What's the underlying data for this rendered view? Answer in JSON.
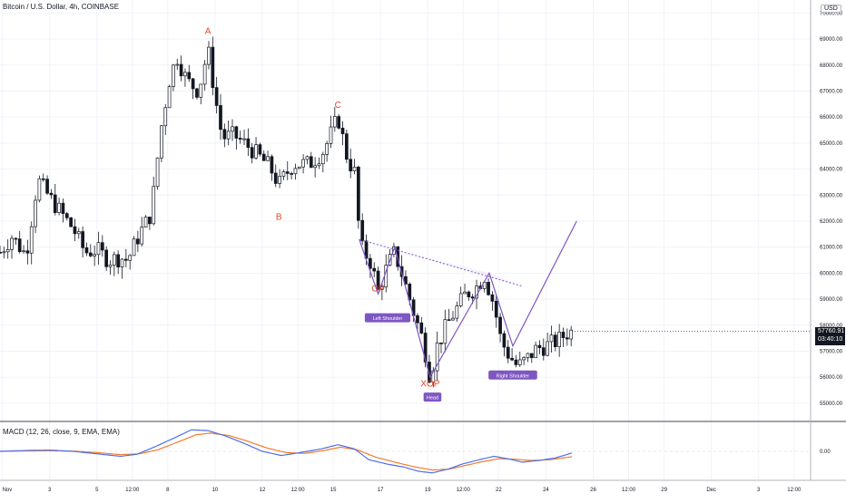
{
  "header": {
    "title": "Bitcoin / U.S. Dollar, 4h, COINBASE",
    "currency": "USD"
  },
  "price_badge": {
    "price": "57760.91",
    "countdown": "03:40:10"
  },
  "macd": {
    "label": "MACD (12, 26, close, 9, EMA, EMA)",
    "zero_label": "0.00"
  },
  "annotations": {
    "waves": [
      {
        "label": "A",
        "time": 9.7,
        "price": 69200
      },
      {
        "label": "B",
        "time": 12.7,
        "price": 62050
      },
      {
        "label": "C",
        "time": 15.2,
        "price": 66350
      },
      {
        "label": "OP",
        "time": 16.9,
        "price": 59300
      },
      {
        "label": "XOP",
        "time": 19.1,
        "price": 55650
      }
    ],
    "pattern_labels": [
      {
        "label": "Left Shoulder",
        "time": 17.3,
        "price": 58250
      },
      {
        "label": "Head",
        "time": 19.2,
        "price": 55200
      },
      {
        "label": "Right Shoulder",
        "time": 22.6,
        "price": 56050
      }
    ]
  },
  "colors": {
    "up": "#131722",
    "down": "#131722",
    "macd_line": "#4d6fe8",
    "signal_line": "#f57c2a",
    "pattern": "#7e57c2",
    "label_red": "#e4462b",
    "grid": "#f0f3fa",
    "axis_text": "#131722"
  },
  "chart_data": {
    "type": "candlestick",
    "title": "Bitcoin / U.S. Dollar, 4h, COINBASE",
    "x_axis": {
      "ticks": [
        {
          "label": "Nov",
          "t": 1.0
        },
        {
          "label": "3",
          "t": 3.0
        },
        {
          "label": "5",
          "t": 5.0
        },
        {
          "label": "12:00",
          "t": 6.5
        },
        {
          "label": "8",
          "t": 8.0
        },
        {
          "label": "10",
          "t": 10.0
        },
        {
          "label": "12",
          "t": 12.0
        },
        {
          "label": "12:00",
          "t": 13.5
        },
        {
          "label": "15",
          "t": 15.0
        },
        {
          "label": "17",
          "t": 17.0
        },
        {
          "label": "19",
          "t": 19.0
        },
        {
          "label": "12:00",
          "t": 20.5
        },
        {
          "label": "22",
          "t": 22.0
        },
        {
          "label": "24",
          "t": 24.0
        },
        {
          "label": "26",
          "t": 26.0
        },
        {
          "label": "12:00",
          "t": 27.5
        },
        {
          "label": "29",
          "t": 29.0
        },
        {
          "label": "Dec",
          "t": 31.0
        },
        {
          "label": "3",
          "t": 33.0
        },
        {
          "label": "12:00",
          "t": 34.5
        }
      ]
    },
    "y_axis": {
      "range": [
        54300,
        70500
      ],
      "ticks": [
        55000,
        56000,
        57000,
        58000,
        59000,
        60000,
        61000,
        62000,
        63000,
        64000,
        65000,
        66000,
        67000,
        68000,
        69000,
        70000
      ],
      "tick_labels": [
        "55000.00",
        "56000.00",
        "57000.00",
        "58000.00",
        "59000.00",
        "60000.00",
        "61000.00",
        "62000.00",
        "63000.00",
        "64000.00",
        "65000.00",
        "66000.00",
        "67000.00",
        "68000.00",
        "69000.00",
        "70000.00"
      ]
    },
    "x_range": [
      0.9,
      35.2
    ],
    "close_anchors": [
      [
        0.9,
        60800
      ],
      [
        1.4,
        61400
      ],
      [
        2.0,
        60700
      ],
      [
        2.5,
        63600
      ],
      [
        3.0,
        62900
      ],
      [
        3.5,
        62300
      ],
      [
        4.0,
        61700
      ],
      [
        4.5,
        60800
      ],
      [
        5.0,
        60900
      ],
      [
        5.5,
        60500
      ],
      [
        6.0,
        60600
      ],
      [
        6.3,
        60500
      ],
      [
        6.8,
        61500
      ],
      [
        7.3,
        62300
      ],
      [
        7.7,
        65500
      ],
      [
        8.1,
        67600
      ],
      [
        8.4,
        68300
      ],
      [
        8.8,
        67400
      ],
      [
        9.3,
        67000
      ],
      [
        9.7,
        68600
      ],
      [
        10.0,
        66800
      ],
      [
        10.3,
        65200
      ],
      [
        10.8,
        65300
      ],
      [
        11.5,
        64800
      ],
      [
        12.3,
        64100
      ],
      [
        12.7,
        63400
      ],
      [
        13.3,
        64200
      ],
      [
        14.0,
        64200
      ],
      [
        14.6,
        64700
      ],
      [
        15.2,
        66000
      ],
      [
        15.6,
        64400
      ],
      [
        16.0,
        63700
      ],
      [
        16.1,
        61100
      ],
      [
        16.6,
        60400
      ],
      [
        16.9,
        59300
      ],
      [
        17.3,
        60300
      ],
      [
        17.6,
        60800
      ],
      [
        18.0,
        59700
      ],
      [
        18.4,
        58500
      ],
      [
        18.8,
        57400
      ],
      [
        19.1,
        56000
      ],
      [
        19.4,
        57200
      ],
      [
        19.8,
        58000
      ],
      [
        20.2,
        58600
      ],
      [
        20.6,
        59200
      ],
      [
        21.0,
        59400
      ],
      [
        21.4,
        59900
      ],
      [
        21.8,
        58800
      ],
      [
        22.1,
        57400
      ],
      [
        22.4,
        56900
      ],
      [
        22.8,
        56400
      ],
      [
        23.2,
        56700
      ],
      [
        23.6,
        57100
      ],
      [
        24.0,
        57200
      ],
      [
        24.5,
        57400
      ],
      [
        24.9,
        57700
      ],
      [
        25.1,
        57760
      ]
    ],
    "macd_anchors": [
      [
        0.9,
        0
      ],
      [
        2.0,
        20
      ],
      [
        3.0,
        30
      ],
      [
        4.0,
        0
      ],
      [
        5.0,
        -60
      ],
      [
        6.0,
        -120
      ],
      [
        6.7,
        -70
      ],
      [
        7.5,
        120
      ],
      [
        8.3,
        330
      ],
      [
        9.0,
        520
      ],
      [
        9.7,
        500
      ],
      [
        10.4,
        380
      ],
      [
        11.2,
        200
      ],
      [
        12.0,
        0
      ],
      [
        12.8,
        -100
      ],
      [
        13.5,
        -40
      ],
      [
        14.5,
        60
      ],
      [
        15.2,
        160
      ],
      [
        15.9,
        60
      ],
      [
        16.5,
        -200
      ],
      [
        17.3,
        -310
      ],
      [
        18.0,
        -380
      ],
      [
        18.6,
        -480
      ],
      [
        19.2,
        -520
      ],
      [
        19.9,
        -420
      ],
      [
        20.5,
        -300
      ],
      [
        21.2,
        -200
      ],
      [
        21.8,
        -120
      ],
      [
        22.4,
        -180
      ],
      [
        23.0,
        -260
      ],
      [
        23.7,
        -220
      ],
      [
        24.4,
        -160
      ],
      [
        25.1,
        -40
      ]
    ],
    "signal_anchors": [
      [
        0.9,
        0
      ],
      [
        2.0,
        10
      ],
      [
        3.0,
        15
      ],
      [
        4.0,
        5
      ],
      [
        5.0,
        -30
      ],
      [
        6.0,
        -80
      ],
      [
        6.8,
        -60
      ],
      [
        7.6,
        40
      ],
      [
        8.4,
        220
      ],
      [
        9.2,
        400
      ],
      [
        9.8,
        440
      ],
      [
        10.6,
        380
      ],
      [
        11.4,
        240
      ],
      [
        12.2,
        80
      ],
      [
        13.0,
        -30
      ],
      [
        13.8,
        -50
      ],
      [
        14.6,
        20
      ],
      [
        15.3,
        100
      ],
      [
        16.0,
        40
      ],
      [
        16.8,
        -140
      ],
      [
        17.6,
        -260
      ],
      [
        18.4,
        -370
      ],
      [
        19.2,
        -450
      ],
      [
        19.9,
        -430
      ],
      [
        20.6,
        -340
      ],
      [
        21.3,
        -250
      ],
      [
        22.0,
        -180
      ],
      [
        22.7,
        -190
      ],
      [
        23.4,
        -220
      ],
      [
        24.2,
        -200
      ],
      [
        25.1,
        -130
      ]
    ],
    "pattern": {
      "neckline": [
        [
          16.1,
          61300
        ],
        [
          23.0,
          59500
        ]
      ],
      "zigzag": [
        [
          16.1,
          61300
        ],
        [
          16.9,
          59200
        ],
        [
          17.6,
          61000
        ],
        [
          19.1,
          56000
        ],
        [
          21.6,
          60000
        ],
        [
          22.6,
          57200
        ],
        [
          25.3,
          62000
        ]
      ]
    },
    "grid": true,
    "legend": "none"
  }
}
